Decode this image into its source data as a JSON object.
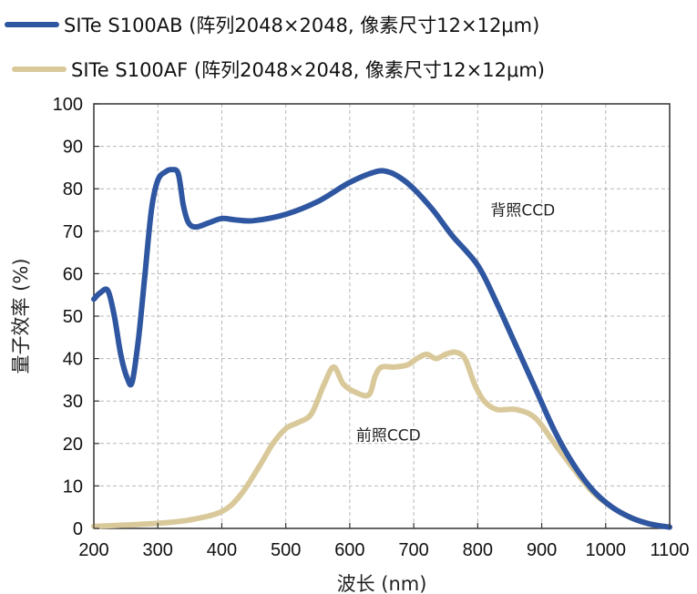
{
  "chart_data": {
    "type": "line",
    "title": "",
    "xlabel": "波长 (nm)",
    "ylabel": "量子效率 (%)",
    "xlim": [
      200,
      1100
    ],
    "ylim": [
      0,
      100
    ],
    "x_ticks": [
      "200",
      "300",
      "400",
      "500",
      "600",
      "700",
      "800",
      "900",
      "1000",
      "1100"
    ],
    "y_ticks": [
      "0",
      "10",
      "20",
      "30",
      "40",
      "50",
      "60",
      "70",
      "80",
      "90",
      "100"
    ],
    "grid": true,
    "legend_position": "top",
    "series": [
      {
        "name": "SITe S100AB (阵列2048×2048, 像素尺寸12×12μm)",
        "color": "#2f56a0",
        "points": [
          [
            200,
            54
          ],
          [
            210,
            55.5
          ],
          [
            222,
            56
          ],
          [
            232,
            50
          ],
          [
            242,
            41
          ],
          [
            252,
            35.5
          ],
          [
            260,
            34.5
          ],
          [
            270,
            45
          ],
          [
            280,
            60
          ],
          [
            290,
            75
          ],
          [
            300,
            82
          ],
          [
            312,
            84
          ],
          [
            322,
            84.5
          ],
          [
            332,
            83.5
          ],
          [
            340,
            76
          ],
          [
            348,
            72
          ],
          [
            360,
            71
          ],
          [
            380,
            72
          ],
          [
            400,
            73
          ],
          [
            420,
            72.7
          ],
          [
            450,
            72.5
          ],
          [
            500,
            74
          ],
          [
            550,
            77
          ],
          [
            600,
            81.5
          ],
          [
            640,
            84
          ],
          [
            660,
            84
          ],
          [
            680,
            82.5
          ],
          [
            700,
            80
          ],
          [
            730,
            75
          ],
          [
            760,
            69
          ],
          [
            800,
            62
          ],
          [
            830,
            53
          ],
          [
            860,
            43
          ],
          [
            890,
            33
          ],
          [
            920,
            23
          ],
          [
            950,
            15
          ],
          [
            980,
            9
          ],
          [
            1010,
            5
          ],
          [
            1040,
            2.5
          ],
          [
            1070,
            1
          ],
          [
            1100,
            0.3
          ]
        ]
      },
      {
        "name": "SITe S100AF (阵列2048×2048, 像素尺寸12×12μm)",
        "color": "#d9c99a",
        "points": [
          [
            200,
            0.5
          ],
          [
            250,
            0.8
          ],
          [
            300,
            1.2
          ],
          [
            350,
            2
          ],
          [
            400,
            4
          ],
          [
            430,
            8
          ],
          [
            460,
            15
          ],
          [
            480,
            20
          ],
          [
            500,
            23.5
          ],
          [
            520,
            25
          ],
          [
            540,
            27
          ],
          [
            560,
            34
          ],
          [
            575,
            38
          ],
          [
            590,
            34
          ],
          [
            610,
            32
          ],
          [
            630,
            31.5
          ],
          [
            640,
            36
          ],
          [
            650,
            38
          ],
          [
            670,
            38
          ],
          [
            690,
            38.5
          ],
          [
            705,
            40
          ],
          [
            720,
            41
          ],
          [
            735,
            40
          ],
          [
            750,
            41
          ],
          [
            765,
            41.5
          ],
          [
            780,
            40
          ],
          [
            795,
            34
          ],
          [
            810,
            30
          ],
          [
            830,
            28
          ],
          [
            860,
            28
          ],
          [
            890,
            26
          ],
          [
            920,
            20
          ],
          [
            950,
            14
          ],
          [
            980,
            8.5
          ],
          [
            1010,
            5
          ],
          [
            1040,
            2.5
          ],
          [
            1070,
            1
          ],
          [
            1100,
            0.3
          ]
        ]
      }
    ],
    "annotations": [
      {
        "text": "背照CCD",
        "x": 820,
        "y": 75
      },
      {
        "text": "前照CCD",
        "x": 610,
        "y": 22
      }
    ]
  }
}
